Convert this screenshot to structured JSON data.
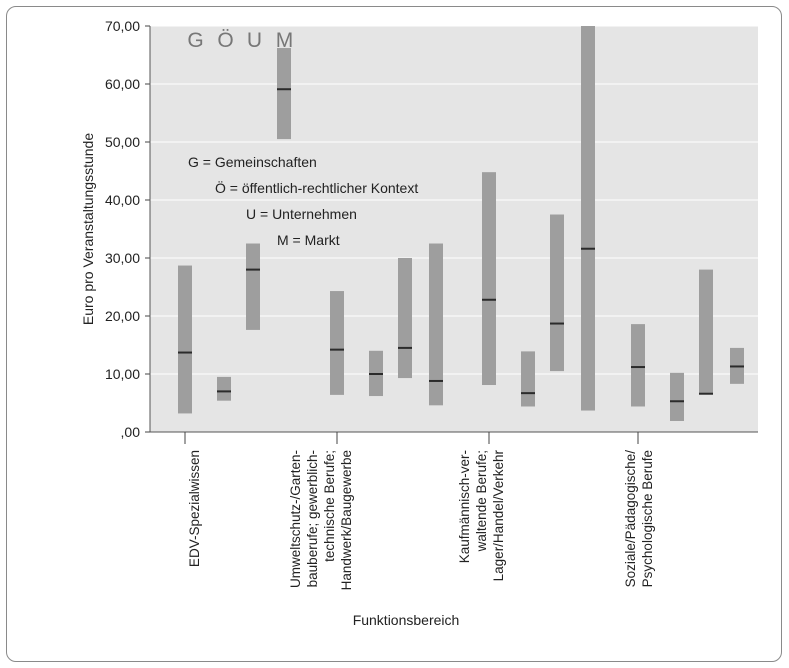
{
  "chart_data": {
    "type": "range-bar",
    "ylabel": "Euro pro Veranstaltungsstunde",
    "xlabel": "Funktionsbereich",
    "ylim": [
      0,
      70
    ],
    "yticks": [
      ",00",
      "10,00",
      "20,00",
      "30,00",
      "40,00",
      "50,00",
      "60,00",
      "70,00"
    ],
    "grid": true,
    "series_letters": [
      "G",
      "Ö",
      "U",
      "M"
    ],
    "legend": [
      "G = Gemeinschaften",
      "Ö = öffentlich-rechtlicher Kontext",
      "U = Unternehmen",
      "M = Markt"
    ],
    "categories": [
      {
        "label_lines": [
          "EDV-Spezialwissen"
        ],
        "series": [
          {
            "series": "G",
            "low": 3.2,
            "high": 28.7,
            "median": 13.7
          },
          {
            "series": "Ö",
            "low": 5.4,
            "high": 9.5,
            "median": 7.0
          },
          {
            "series": "U",
            "low": 17.6,
            "high": 32.5,
            "median": 28.0
          },
          {
            "series": "M",
            "low": 50.5,
            "high": 66.2,
            "median": 59.1
          }
        ]
      },
      {
        "label_lines": [
          "Umweltschutz-/Garten-",
          "bauberufe; gewerblich-",
          "technische Berufe;",
          "Handwerk/Baugewerbe"
        ],
        "series": [
          {
            "series": "G",
            "low": 6.4,
            "high": 24.3,
            "median": 14.2
          },
          {
            "series": "Ö",
            "low": 6.2,
            "high": 14.0,
            "median": 10.0
          },
          {
            "series": "U",
            "low": 9.3,
            "high": 30.0,
            "median": 14.5
          },
          {
            "series": "M",
            "low": 4.6,
            "high": 32.5,
            "median": 8.8
          }
        ]
      },
      {
        "label_lines": [
          "Kaufmännisch-ver-",
          "waltende Berufe;",
          "Lager/Handel/Verkehr"
        ],
        "series": [
          {
            "series": "G",
            "low": 8.1,
            "high": 44.8,
            "median": 22.8
          },
          {
            "series": "Ö",
            "low": 4.4,
            "high": 13.9,
            "median": 6.7
          },
          {
            "series": "U",
            "low": 10.5,
            "high": 37.5,
            "median": 18.7
          },
          {
            "series": "M",
            "low": 3.7,
            "high": 70.0,
            "median": 31.6
          }
        ]
      },
      {
        "label_lines": [
          "Soziale/Pädagogische/",
          "Psychologische Berufe"
        ],
        "series": [
          {
            "series": "G",
            "low": 4.4,
            "high": 18.6,
            "median": 11.2
          },
          {
            "series": "Ö",
            "low": 1.9,
            "high": 10.2,
            "median": 5.3
          },
          {
            "series": "U",
            "low": 6.6,
            "high": 28.0,
            "median": 6.6
          },
          {
            "series": "M",
            "low": 8.3,
            "high": 14.5,
            "median": 11.3
          }
        ]
      }
    ],
    "colors": {
      "plot_bg": "#e5e5e5",
      "bar": "#9e9e9e",
      "median": "#2b2b2b",
      "grid": "#ffffff"
    }
  }
}
